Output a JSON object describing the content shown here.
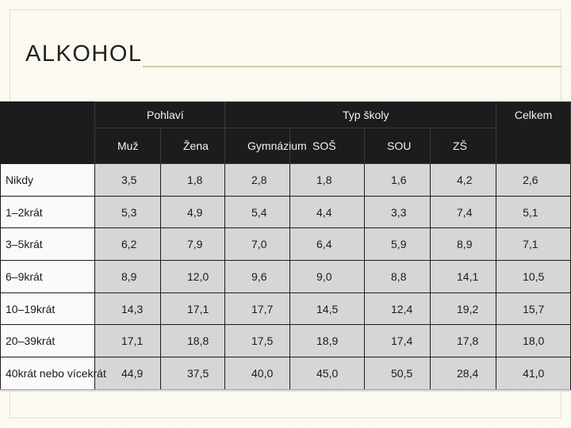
{
  "slide": {
    "title": "ALKOHOL",
    "accent_color": "#d8cc9e",
    "background_color": "#fdfbf3"
  },
  "table": {
    "group_headers": {
      "gender": "Pohlaví",
      "school_type": "Typ školy",
      "total": "Celkem"
    },
    "columns": [
      "Muž",
      "Žena",
      "Gymnázium",
      "SOŠ",
      "SOU",
      "ZŠ"
    ],
    "rows": [
      {
        "label": "Nikdy",
        "values": [
          "3,5",
          "1,8",
          "2,8",
          "1,8",
          "1,6",
          "4,2",
          "2,6"
        ]
      },
      {
        "label": "1–2krát",
        "values": [
          "5,3",
          "4,9",
          "5,4",
          "4,4",
          "3,3",
          "7,4",
          "5,1"
        ]
      },
      {
        "label": "3–5krát",
        "values": [
          "6,2",
          "7,9",
          "7,0",
          "6,4",
          "5,9",
          "8,9",
          "7,1"
        ]
      },
      {
        "label": "6–9krát",
        "values": [
          "8,9",
          "12,0",
          "9,6",
          "9,0",
          "8,8",
          "14,1",
          "10,5"
        ]
      },
      {
        "label": "10–19krát",
        "values": [
          "14,3",
          "17,1",
          "17,7",
          "14,5",
          "12,4",
          "19,2",
          "15,7"
        ]
      },
      {
        "label": "20–39krát",
        "values": [
          "17,1",
          "18,8",
          "17,5",
          "18,9",
          "17,4",
          "17,8",
          "18,0"
        ]
      },
      {
        "label": "40krát nebo vícekrát",
        "values": [
          "44,9",
          "37,5",
          "40,0",
          "45,0",
          "50,5",
          "28,4",
          "41,0"
        ]
      }
    ]
  }
}
